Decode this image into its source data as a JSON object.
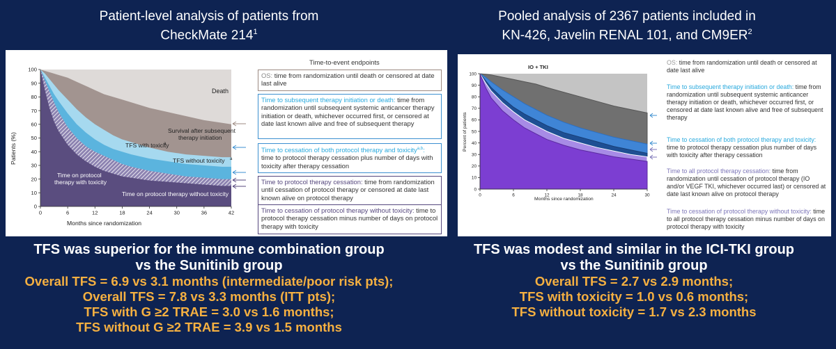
{
  "left": {
    "heading_line1": "Patient-level analysis of patients from",
    "heading_line2": "CheckMate 214",
    "heading_sup": "1",
    "chart_data": {
      "type": "area",
      "xlabel": "Months since randomization",
      "ylabel": "Patients (%)",
      "xlim": [
        0,
        42
      ],
      "ylim": [
        0,
        100
      ],
      "x_ticks": [
        "0",
        "6",
        "12",
        "18",
        "24",
        "30",
        "36",
        "42"
      ],
      "y_ticks": [
        "0",
        "10",
        "20",
        "30",
        "40",
        "50",
        "60",
        "70",
        "80",
        "90",
        "100"
      ],
      "x": [
        0,
        1,
        2,
        3,
        4,
        6,
        8,
        10,
        12,
        14,
        16,
        18,
        20,
        24,
        28,
        32,
        36,
        40,
        42
      ],
      "series": [
        {
          "name": "Time on protocol therapy without toxicity",
          "values": [
            100,
            85,
            72,
            62,
            55,
            45,
            38,
            33,
            29,
            26,
            24,
            22,
            21,
            19,
            18,
            17,
            16,
            15,
            15
          ]
        },
        {
          "name": "Time on protocol therapy with toxicity",
          "values": [
            100,
            92,
            84,
            76,
            69,
            58,
            50,
            44,
            40,
            37,
            34,
            31,
            29,
            26,
            24,
            22,
            21,
            20,
            20
          ]
        },
        {
          "name": "TFS without toxicity",
          "values": [
            100,
            94,
            88,
            82,
            77,
            68,
            60,
            54,
            49,
            45,
            42,
            40,
            38,
            35,
            33,
            31,
            30,
            29,
            29
          ]
        },
        {
          "name": "TFS with toxicity",
          "values": [
            100,
            97,
            93,
            89,
            85,
            78,
            71,
            65,
            60,
            56,
            52,
            49,
            47,
            43,
            40,
            38,
            37,
            36,
            36
          ]
        },
        {
          "name": "Survival after subsequent therapy initiation",
          "values": [
            100,
            99,
            98,
            97,
            96,
            94,
            91,
            88,
            85,
            82,
            80,
            78,
            76,
            72,
            69,
            66,
            63,
            61,
            60
          ]
        }
      ],
      "annotations": [
        "Death",
        "Survival after subsequent therapy initiation",
        "TFS  with toxicity",
        "TFS  without toxicity",
        "Time on protocol therapy with toxicity",
        "Time on protocol therapy without toxicity"
      ],
      "legend_title": "Time-to-event endpoints"
    },
    "labels": {
      "death": "Death",
      "survival_l1": "Survival after subsequent",
      "survival_l2": "therapy initiation",
      "tfs_with": "TFS  with toxicity",
      "tfs_without": "TFS  without toxicity",
      "time_with_l1": "Time on protocol",
      "time_with_l2": "therapy with toxicity",
      "time_without": "Time on protocol therapy without toxicity",
      "endpoints_title": "Time-to-event endpoints",
      "sup_a": "a"
    },
    "boxes": [
      {
        "title": "OS:",
        "text": " time from randomization until death or censored at date last alive"
      },
      {
        "title": "Time to subsequent therapy initiation or death:",
        "text": " time from randomization until subsequent systemic anticancer therapy initiation or death, whichever occurred first, or censored at date last known alive and free of subsequent therapy"
      },
      {
        "title": "Time to cessation of both protocol therapy and toxicity",
        "title_sup": "a,b",
        "title_end": ":",
        "text": " time to protocol therapy cessation plus number of days with toxicity after therapy cessation"
      },
      {
        "title": "Time to protocol therapy cessation:",
        "text": " time from randomization until cessation of protocol therapy or censored at date last known alive on protocol therapy"
      },
      {
        "title": "Time to cessation of protocol therapy without toxicity:",
        "text": " time to protocol therapy cessation minus number of days on protocol therapy with toxicity"
      }
    ],
    "conclusion_l1": "TFS was superior for the immune combination group",
    "conclusion_l2": "vs the Sunitinib group",
    "bullets": [
      "Overall TFS = 6.9 vs 3.1 months (intermediate/poor risk pts);",
      "Overall TFS = 7.8 vs 3.3 months (ITT pts);",
      "TFS with G ≥2 TRAE = 3.0 vs 1.6 months;",
      "TFS without G ≥2 TRAE = 3.9 vs 1.5 months"
    ]
  },
  "right": {
    "heading_line1": "Pooled analysis of 2367 patients included in",
    "heading_line2": "KN-426, Javelin RENAL 101, and CM9ER",
    "heading_sup": "2",
    "chart_data": {
      "type": "area",
      "title": "IO + TKI",
      "xlabel": "Months since randomization",
      "ylabel": "Percent of patients",
      "xlim": [
        0,
        30
      ],
      "ylim": [
        0,
        100
      ],
      "x_ticks": [
        "0",
        "6",
        "12",
        "18",
        "24",
        "30"
      ],
      "y_ticks": [
        "0",
        "10",
        "20",
        "30",
        "40",
        "50",
        "60",
        "70",
        "80",
        "90",
        "100"
      ],
      "x": [
        0,
        1,
        2,
        4,
        6,
        8,
        10,
        12,
        15,
        18,
        21,
        24,
        27,
        30
      ],
      "series": [
        {
          "name": "Time to cessation of protocol therapy without toxicity",
          "values": [
            100,
            88,
            79,
            68,
            60,
            53,
            48,
            43,
            38,
            34,
            31,
            28,
            26,
            24
          ]
        },
        {
          "name": "Time to all protocol therapy cessation",
          "values": [
            100,
            92,
            85,
            75,
            67,
            60,
            55,
            50,
            44,
            40,
            36,
            33,
            30,
            28
          ]
        },
        {
          "name": "Time to cessation of both protocol therapy and toxicity",
          "values": [
            100,
            94,
            88,
            79,
            71,
            65,
            60,
            55,
            49,
            45,
            41,
            37,
            34,
            31
          ]
        },
        {
          "name": "Time to subsequent therapy initiation or death",
          "values": [
            100,
            97,
            93,
            86,
            80,
            74,
            69,
            64,
            58,
            53,
            49,
            45,
            42,
            39
          ]
        },
        {
          "name": "OS",
          "values": [
            100,
            99.5,
            99,
            97,
            95,
            93,
            91,
            88,
            84,
            80,
            76,
            72,
            69,
            66
          ]
        }
      ]
    },
    "descs": [
      {
        "title": "OS:",
        "text": " time from randomization until death or censored at date last alive"
      },
      {
        "title": "Time to subsequent therapy initiation or death:",
        "text": " time from randomization until subsequent systemic anticancer therapy initiation or death, whichever occurred first, or censored at date last known alive and free of subsequent therapy"
      },
      {
        "title": "Time to cessation of both protocol therapy and toxicity:",
        "text": " time to protocol therapy cessation plus number of days with toxicity after therapy cessation"
      },
      {
        "title": "Time to all protocol therapy cessation:",
        "text": " time from randomization until cessation of protocol therapy (IO and/or VEGF TKI, whichever occurred last) or censored at date last known alive on protocol therapy"
      },
      {
        "title": "Time to cessation of protocol therapy without toxicity:",
        "text": " time to all protocol therapy cessation minus number of days on protocol therapy with toxicity"
      }
    ],
    "conclusion_l1": "TFS was modest and similar in the ICI-TKI group",
    "conclusion_l2": "vs the Sunitinib group",
    "bullets": [
      "Overall TFS = 2.7 vs 2.9 months;",
      "TFS with toxicity = 1.0 vs 0.6 months;",
      "TFS without toxicity = 1.7 vs 2.3 months"
    ]
  },
  "colors": {
    "background": "#0e2352",
    "accent_text": "#f5b041",
    "left_fills": [
      "#5a4d7f",
      "#8d83b1",
      "#5bb4de",
      "#a6d9ef",
      "#a29490",
      "#dedad8"
    ],
    "right_fills": [
      "#7c3ed2",
      "#a78be6",
      "#1e4f93",
      "#3f85d6",
      "#707070",
      "#c4c4c4"
    ]
  }
}
